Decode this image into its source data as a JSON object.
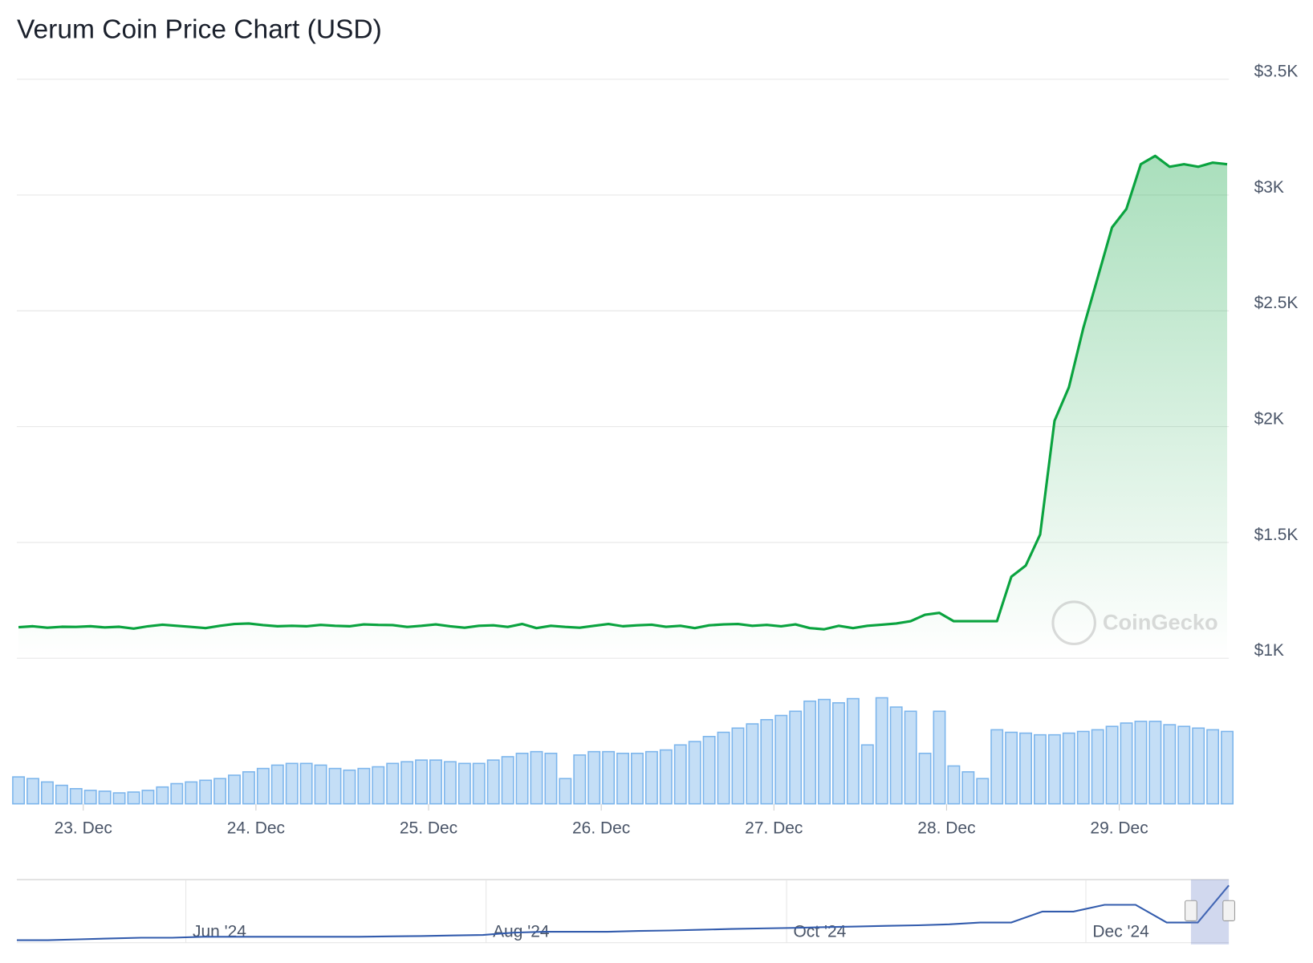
{
  "chart_data": {
    "type": "line",
    "title": "Verum Coin Price Chart (USD)",
    "watermark": "CoinGecko",
    "color": "#0aa33f",
    "volume_color": "#7cb5ec",
    "navigator_color": "#335cad",
    "xlim": [
      0,
      84
    ],
    "xticks": [
      {
        "value": 4.5,
        "label": "23. Dec"
      },
      {
        "value": 16.5,
        "label": "24. Dec"
      },
      {
        "value": 28.5,
        "label": "25. Dec"
      },
      {
        "value": 40.5,
        "label": "26. Dec"
      },
      {
        "value": 52.5,
        "label": "27. Dec"
      },
      {
        "value": 64.5,
        "label": "28. Dec"
      },
      {
        "value": 76.5,
        "label": "29. Dec"
      }
    ],
    "ylim": [
      1000,
      3500
    ],
    "yticks": [
      {
        "value": 1000,
        "label": "$1K"
      },
      {
        "value": 1500,
        "label": "$1.5K"
      },
      {
        "value": 2000,
        "label": "$2K"
      },
      {
        "value": 2500,
        "label": "$2.5K"
      },
      {
        "value": 3000,
        "label": "$3K"
      },
      {
        "value": 3500,
        "label": "$3.5K"
      }
    ],
    "grid": true,
    "values": [
      1134,
      1138,
      1132,
      1136,
      1135,
      1138,
      1133,
      1136,
      1128,
      1138,
      1145,
      1140,
      1135,
      1130,
      1140,
      1148,
      1150,
      1143,
      1138,
      1140,
      1138,
      1144,
      1140,
      1138,
      1146,
      1144,
      1143,
      1135,
      1140,
      1146,
      1138,
      1132,
      1140,
      1142,
      1135,
      1148,
      1130,
      1140,
      1135,
      1132,
      1140,
      1148,
      1138,
      1142,
      1145,
      1136,
      1140,
      1130,
      1142,
      1146,
      1148,
      1140,
      1144,
      1138,
      1146,
      1130,
      1125,
      1140,
      1130,
      1140,
      1145,
      1150,
      1160,
      1188,
      1196,
      1160,
      1160,
      1160,
      1160,
      1352,
      1400,
      1534,
      2025,
      2170,
      2424,
      2642,
      2860,
      2940,
      3133,
      3169,
      3122,
      3133,
      3122,
      3140,
      3133
    ],
    "volume_lim": [
      0,
      140
    ],
    "volume": [
      32,
      30,
      26,
      22,
      18,
      16,
      15,
      13,
      14,
      16,
      20,
      24,
      26,
      28,
      30,
      34,
      38,
      42,
      46,
      48,
      48,
      46,
      42,
      40,
      42,
      44,
      48,
      50,
      52,
      52,
      50,
      48,
      48,
      52,
      56,
      60,
      62,
      60,
      30,
      58,
      62,
      62,
      60,
      60,
      62,
      64,
      70,
      74,
      80,
      85,
      90,
      95,
      100,
      105,
      110,
      122,
      124,
      120,
      125,
      70,
      126,
      115,
      110,
      60,
      110,
      45,
      38,
      30,
      88,
      85,
      84,
      82,
      82,
      84,
      86,
      88,
      92,
      96,
      98,
      98,
      94,
      92,
      90,
      88,
      86
    ],
    "navigator_xlim": [
      0,
      39
    ],
    "navigator_ylim": [
      60,
      3420
    ],
    "navigator_xticks": [
      {
        "value": 5.44,
        "label": "Jun '24"
      },
      {
        "value": 15.1,
        "label": "Aug '24"
      },
      {
        "value": 24.77,
        "label": "Oct '24"
      },
      {
        "value": 34.4,
        "label": "Dec '24"
      }
    ],
    "navigator": [
      195,
      195,
      240,
      285,
      330,
      330,
      377,
      377,
      377,
      377,
      377,
      377,
      400,
      420,
      450,
      480,
      604,
      650,
      650,
      650,
      695,
      720,
      760,
      800,
      832,
      860,
      900,
      930,
      968,
      1000,
      1050,
      1150,
      1150,
      1741,
      1741,
      2105,
      2105,
      1150,
      1150,
      3150
    ]
  }
}
